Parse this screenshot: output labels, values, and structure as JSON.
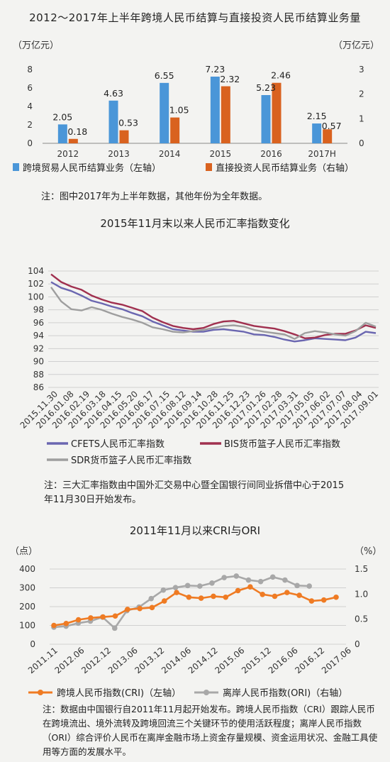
{
  "chart_data": [
    {
      "type": "bar",
      "title": "2012～2017年上半年跨境人民币结算与直接投资人民币结算业务量",
      "left_unit": "（万亿元）",
      "right_unit": "（万亿元）",
      "categories": [
        "2012",
        "2013",
        "2014",
        "2015",
        "2016",
        "2017H"
      ],
      "series": [
        {
          "name": "跨境贸易人民币结算业务（左轴）",
          "values": [
            2.05,
            4.63,
            6.55,
            7.23,
            5.23,
            2.15
          ],
          "color": "#4a96d8",
          "axis": "left"
        },
        {
          "name": "直接投资人民币结算业务（右轴）",
          "values": [
            0.18,
            0.53,
            1.05,
            2.32,
            2.46,
            0.57
          ],
          "color": "#d9621f",
          "axis": "right"
        }
      ],
      "left_ticks": [
        "0",
        "2",
        "4",
        "6",
        "8"
      ],
      "right_ticks": [
        "0",
        "1",
        "2",
        "3"
      ],
      "ylim_left": [
        0,
        8
      ],
      "ylim_right": [
        0,
        3
      ],
      "note": "注：图中2017年为上半年数据，其他年份为全年数据。"
    },
    {
      "type": "line",
      "title": "2015年11月末以来人民币汇率指数变化",
      "y_ticks": [
        "86",
        "88",
        "90",
        "92",
        "94",
        "96",
        "98",
        "100",
        "102",
        "104"
      ],
      "ylim": [
        86,
        104
      ],
      "x_ticks": [
        "2015.11.30",
        "2016.01.08",
        "2016.02.19",
        "2016.03.18",
        "2016.04.15",
        "2016.05.20",
        "2016.06.17",
        "2016.07.15",
        "2016.08.12",
        "2016.09.14",
        "2016.10.28",
        "2016.11.25",
        "2016.12.23",
        "2017.01.26",
        "2017.02.28",
        "2017.03.31",
        "2017.05.05",
        "2017.06.02",
        "2017.07.07",
        "2017.08.04",
        "2017.09.01"
      ],
      "series": [
        {
          "name": "CFETS人民币汇率指数",
          "color": "#6a66b0",
          "values": [
            102.3,
            101.4,
            100.9,
            100.2,
            99.4,
            99.0,
            98.5,
            98.1,
            97.5,
            97.0,
            96.2,
            95.6,
            95.0,
            94.8,
            94.6,
            94.6,
            94.9,
            95.0,
            94.8,
            94.6,
            94.2,
            94.1,
            93.8,
            93.4,
            93.1,
            93.3,
            93.6,
            93.5,
            93.4,
            93.3,
            93.7,
            94.6,
            94.4
          ]
        },
        {
          "name": "BIS货币篮子人民币汇率指数",
          "color": "#a0304f",
          "values": [
            103.5,
            102.3,
            101.6,
            101.1,
            100.2,
            99.6,
            99.1,
            98.8,
            98.3,
            97.8,
            96.8,
            96.1,
            95.5,
            95.2,
            95.0,
            95.2,
            95.8,
            96.2,
            96.3,
            95.9,
            95.5,
            95.3,
            95.1,
            94.7,
            94.2,
            93.6,
            93.7,
            94.1,
            94.3,
            94.3,
            94.8,
            95.6,
            95.2
          ]
        },
        {
          "name": "SDR货币篮子人民币汇率指数",
          "color": "#9e9e9e",
          "values": [
            101.5,
            99.3,
            98.1,
            97.9,
            98.4,
            98.0,
            97.4,
            96.9,
            96.5,
            96.0,
            95.3,
            95.0,
            94.6,
            94.5,
            94.7,
            94.9,
            95.2,
            95.5,
            95.6,
            95.4,
            94.9,
            94.6,
            94.4,
            94.2,
            93.5,
            94.4,
            94.7,
            94.5,
            94.2,
            94.0,
            94.7,
            96.0,
            95.4
          ]
        }
      ],
      "note": "注：三大汇率指数由中国外汇交易中心暨全国银行间同业拆借中心于2015年11月30日开始发布。"
    },
    {
      "type": "line",
      "title": "2011年11月以来CRI与ORI",
      "left_unit": "（点）",
      "right_unit": "（%）",
      "left_ticks": [
        "0",
        "100",
        "200",
        "300",
        "400"
      ],
      "right_ticks": [
        "0",
        "0.5",
        "1.0",
        "1.5"
      ],
      "ylim_left": [
        0,
        400
      ],
      "ylim_right": [
        0,
        1.5
      ],
      "x_ticks": [
        "2011.11",
        "2012.06",
        "2012.12",
        "2013.06",
        "2013.12",
        "2014.06",
        "2014.12",
        "2015.06",
        "2015.12",
        "2016.06",
        "2016.12",
        "2017.06"
      ],
      "series": [
        {
          "name": "跨境人民币指数(CRI)（左轴）",
          "color": "#ef7b23",
          "axis": "left",
          "values": [
            100,
            110,
            130,
            140,
            145,
            150,
            185,
            190,
            195,
            230,
            275,
            250,
            245,
            255,
            250,
            285,
            305,
            265,
            255,
            275,
            260,
            230,
            235,
            250
          ]
        },
        {
          "name": "离岸人民币指数(ORI)（右轴）",
          "color": "#a8a8a8",
          "axis": "right",
          "values": [
            0.34,
            0.36,
            0.42,
            0.46,
            0.54,
            0.32,
            0.67,
            0.74,
            0.91,
            1.08,
            1.13,
            1.17,
            1.16,
            1.22,
            1.33,
            1.36,
            1.28,
            1.25,
            1.34,
            1.28,
            1.17,
            1.16
          ]
        }
      ],
      "note": "注：数据由中国银行自2011年11月起开始发布。跨境人民币指数（CRI）跟踪人民币在跨境流出、境外流转及跨境回流三个关键环节的使用活跃程度；离岸人民币指数（ORI）综合评价人民币在离岸金融市场上资金存量规模、资金运用状况、金融工具使用等方面的发展水平。"
    }
  ]
}
